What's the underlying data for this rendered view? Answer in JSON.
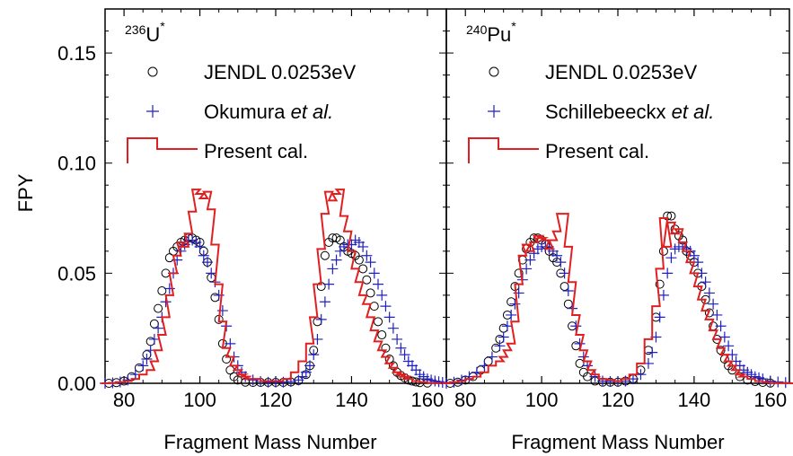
{
  "chart_data": [
    {
      "type": "scatter",
      "nucleus_mass": "236",
      "nucleus_symbol": "U",
      "nucleus_mark": "*",
      "xlabel": "Fragment Mass Number",
      "ylabel": "FPY",
      "xlim": [
        75,
        165
      ],
      "ylim": [
        0,
        0.17
      ],
      "xticks": [
        "80",
        "100",
        "120",
        "140",
        "160"
      ],
      "yticks": [
        "0.00",
        "0.05",
        "0.10",
        "0.15"
      ],
      "legend": {
        "placement": "top-left",
        "entries": [
          {
            "label": "JENDL 0.0253eV",
            "label_italic": ""
          },
          {
            "label": "Okumura ",
            "label_italic": "et al."
          },
          {
            "label": "Present cal.",
            "label_italic": ""
          }
        ]
      },
      "series": [
        {
          "name": "JENDL 0.0253eV",
          "marker": "circle",
          "color": "#000000",
          "x": [
            76,
            78,
            80,
            82,
            84,
            86,
            87,
            88,
            89,
            90,
            91,
            92,
            93,
            94,
            95,
            96,
            97,
            98,
            99,
            100,
            101,
            102,
            103,
            104,
            105,
            106,
            107,
            108,
            109,
            110,
            112,
            114,
            116,
            118,
            120,
            122,
            124,
            126,
            128,
            129,
            130,
            131,
            132,
            133,
            134,
            135,
            136,
            137,
            138,
            139,
            140,
            141,
            142,
            143,
            144,
            145,
            146,
            147,
            148,
            149,
            150,
            151,
            152,
            153,
            154,
            155,
            156,
            157,
            158,
            160
          ],
          "y": [
            0.0,
            0.0003,
            0.001,
            0.003,
            0.007,
            0.013,
            0.019,
            0.027,
            0.034,
            0.042,
            0.05,
            0.057,
            0.06,
            0.062,
            0.064,
            0.065,
            0.066,
            0.066,
            0.065,
            0.064,
            0.06,
            0.055,
            0.048,
            0.039,
            0.029,
            0.018,
            0.011,
            0.006,
            0.003,
            0.0015,
            0.0005,
            0.0004,
            0.0004,
            0.0004,
            0.0004,
            0.0004,
            0.0006,
            0.0012,
            0.004,
            0.008,
            0.015,
            0.028,
            0.044,
            0.058,
            0.064,
            0.066,
            0.066,
            0.065,
            0.062,
            0.06,
            0.059,
            0.058,
            0.056,
            0.052,
            0.047,
            0.041,
            0.035,
            0.028,
            0.022,
            0.016,
            0.011,
            0.008,
            0.005,
            0.0035,
            0.0025,
            0.0015,
            0.001,
            0.0006,
            0.0003,
            0.0001
          ]
        },
        {
          "name": "Okumura et al.",
          "marker": "plus",
          "color": "#2020c0",
          "x": [
            75,
            77,
            79,
            81,
            83,
            85,
            86,
            87,
            88,
            89,
            90,
            91,
            92,
            93,
            94,
            95,
            96,
            97,
            98,
            99,
            100,
            101,
            102,
            103,
            104,
            105,
            106,
            107,
            108,
            109,
            110,
            111,
            112,
            114,
            116,
            118,
            120,
            122,
            124,
            126,
            127,
            128,
            129,
            130,
            131,
            132,
            133,
            134,
            135,
            136,
            137,
            138,
            139,
            140,
            141,
            142,
            143,
            144,
            145,
            146,
            147,
            148,
            149,
            150,
            151,
            152,
            153,
            154,
            155,
            156,
            157,
            158,
            159,
            160,
            161,
            162,
            163,
            164
          ],
          "y": [
            0.0,
            0.0002,
            0.0006,
            0.0015,
            0.004,
            0.008,
            0.011,
            0.015,
            0.02,
            0.025,
            0.03,
            0.037,
            0.043,
            0.05,
            0.056,
            0.06,
            0.063,
            0.065,
            0.065,
            0.064,
            0.062,
            0.058,
            0.055,
            0.05,
            0.046,
            0.04,
            0.033,
            0.026,
            0.018,
            0.012,
            0.008,
            0.005,
            0.003,
            0.0015,
            0.0008,
            0.0005,
            0.0005,
            0.0005,
            0.0008,
            0.0015,
            0.003,
            0.005,
            0.008,
            0.013,
            0.02,
            0.029,
            0.037,
            0.045,
            0.052,
            0.056,
            0.06,
            0.062,
            0.063,
            0.063,
            0.065,
            0.064,
            0.062,
            0.058,
            0.055,
            0.05,
            0.045,
            0.04,
            0.035,
            0.03,
            0.025,
            0.02,
            0.016,
            0.013,
            0.01,
            0.008,
            0.006,
            0.004,
            0.003,
            0.002,
            0.0015,
            0.001,
            0.0007,
            0.0004
          ]
        },
        {
          "name": "Present cal.",
          "marker": "step",
          "color": "#e02020",
          "x": [
            75,
            77,
            79,
            81,
            83,
            85,
            87,
            88,
            89,
            90,
            91,
            92,
            93,
            94,
            95,
            96,
            97,
            98,
            99,
            100,
            101,
            102,
            103,
            104,
            105,
            106,
            107,
            108,
            109,
            110,
            111,
            112,
            113,
            115,
            117,
            119,
            121,
            123,
            125,
            127,
            129,
            130,
            131,
            132,
            133,
            134,
            135,
            136,
            137,
            138,
            139,
            140,
            141,
            142,
            143,
            144,
            145,
            146,
            147,
            148,
            149,
            150,
            151,
            152,
            153,
            154,
            155,
            157,
            159,
            161,
            163,
            165
          ],
          "y": [
            0.0,
            0.0002,
            0.0005,
            0.001,
            0.002,
            0.004,
            0.006,
            0.01,
            0.015,
            0.022,
            0.03,
            0.04,
            0.05,
            0.058,
            0.064,
            0.062,
            0.068,
            0.078,
            0.088,
            0.086,
            0.084,
            0.087,
            0.079,
            0.063,
            0.045,
            0.028,
            0.016,
            0.012,
            0.008,
            0.006,
            0.004,
            0.003,
            0.002,
            0.002,
            0.001,
            0.001,
            0.001,
            0.002,
            0.005,
            0.01,
            0.018,
            0.03,
            0.045,
            0.061,
            0.077,
            0.087,
            0.083,
            0.086,
            0.088,
            0.076,
            0.069,
            0.06,
            0.052,
            0.046,
            0.04,
            0.036,
            0.03,
            0.024,
            0.019,
            0.015,
            0.012,
            0.009,
            0.007,
            0.005,
            0.004,
            0.003,
            0.002,
            0.001,
            0.0005,
            0.0002,
            0.0001,
            0.0
          ]
        }
      ]
    },
    {
      "type": "scatter",
      "nucleus_mass": "240",
      "nucleus_symbol": "Pu",
      "nucleus_mark": "*",
      "xlabel": "Fragment Mass Number",
      "ylabel": "",
      "xlim": [
        75,
        165
      ],
      "ylim": [
        0,
        0.17
      ],
      "xticks": [
        "80",
        "100",
        "120",
        "140",
        "160"
      ],
      "yticks": [],
      "legend": {
        "placement": "top-left",
        "entries": [
          {
            "label": "JENDL 0.0253eV",
            "label_italic": ""
          },
          {
            "label": "Schillebeeckx ",
            "label_italic": "et al."
          },
          {
            "label": "Present cal.",
            "label_italic": ""
          }
        ]
      },
      "series": [
        {
          "name": "JENDL 0.0253eV",
          "marker": "circle",
          "color": "#000000",
          "x": [
            76,
            78,
            80,
            82,
            84,
            86,
            88,
            89,
            90,
            91,
            92,
            93,
            94,
            95,
            96,
            97,
            98,
            99,
            100,
            101,
            102,
            103,
            104,
            105,
            106,
            107,
            108,
            109,
            110,
            111,
            112,
            114,
            116,
            118,
            120,
            122,
            124,
            126,
            128,
            130,
            131,
            132,
            133,
            134,
            135,
            136,
            137,
            138,
            139,
            140,
            141,
            142,
            143,
            144,
            145,
            146,
            147,
            148,
            149,
            150,
            152,
            154,
            156,
            158,
            160
          ],
          "y": [
            0.0,
            0.0005,
            0.0015,
            0.003,
            0.006,
            0.01,
            0.016,
            0.02,
            0.025,
            0.031,
            0.037,
            0.044,
            0.05,
            0.056,
            0.061,
            0.064,
            0.066,
            0.066,
            0.065,
            0.063,
            0.06,
            0.057,
            0.055,
            0.05,
            0.044,
            0.036,
            0.026,
            0.017,
            0.009,
            0.005,
            0.003,
            0.001,
            0.0005,
            0.0005,
            0.0005,
            0.001,
            0.002,
            0.006,
            0.015,
            0.03,
            0.045,
            0.06,
            0.076,
            0.076,
            0.07,
            0.067,
            0.065,
            0.06,
            0.058,
            0.055,
            0.05,
            0.044,
            0.038,
            0.032,
            0.026,
            0.02,
            0.015,
            0.011,
            0.008,
            0.006,
            0.003,
            0.0015,
            0.0008,
            0.0004,
            0.0001
          ]
        },
        {
          "name": "Schillebeeckx et al.",
          "marker": "plus",
          "color": "#2020c0",
          "x": [
            75,
            77,
            79,
            81,
            83,
            85,
            87,
            89,
            90,
            91,
            92,
            93,
            94,
            95,
            96,
            97,
            98,
            99,
            100,
            101,
            102,
            103,
            104,
            105,
            106,
            107,
            108,
            109,
            110,
            111,
            112,
            114,
            116,
            118,
            120,
            122,
            124,
            126,
            128,
            129,
            130,
            131,
            132,
            133,
            134,
            135,
            136,
            137,
            138,
            139,
            140,
            141,
            142,
            143,
            144,
            145,
            146,
            147,
            148,
            149,
            150,
            151,
            152,
            153,
            154,
            155,
            156,
            157,
            158,
            160,
            162,
            164
          ],
          "y": [
            0.0,
            0.0005,
            0.0015,
            0.003,
            0.005,
            0.008,
            0.012,
            0.017,
            0.021,
            0.026,
            0.031,
            0.036,
            0.041,
            0.047,
            0.052,
            0.056,
            0.059,
            0.061,
            0.062,
            0.062,
            0.061,
            0.06,
            0.058,
            0.055,
            0.05,
            0.042,
            0.034,
            0.026,
            0.018,
            0.012,
            0.008,
            0.003,
            0.001,
            0.0008,
            0.0008,
            0.001,
            0.002,
            0.004,
            0.009,
            0.014,
            0.021,
            0.03,
            0.04,
            0.05,
            0.057,
            0.061,
            0.062,
            0.062,
            0.061,
            0.06,
            0.058,
            0.055,
            0.05,
            0.046,
            0.041,
            0.036,
            0.031,
            0.026,
            0.021,
            0.017,
            0.013,
            0.01,
            0.008,
            0.006,
            0.005,
            0.004,
            0.003,
            0.0025,
            0.002,
            0.001,
            0.0006,
            0.0003
          ]
        },
        {
          "name": "Present cal.",
          "marker": "step",
          "color": "#e02020",
          "x": [
            75,
            77,
            79,
            81,
            83,
            85,
            87,
            89,
            90,
            91,
            92,
            93,
            94,
            95,
            96,
            97,
            98,
            99,
            100,
            101,
            102,
            103,
            104,
            105,
            106,
            107,
            108,
            109,
            110,
            111,
            112,
            113,
            114,
            116,
            118,
            120,
            122,
            124,
            126,
            128,
            130,
            131,
            132,
            133,
            134,
            135,
            136,
            137,
            138,
            139,
            140,
            141,
            142,
            143,
            144,
            145,
            146,
            147,
            148,
            149,
            150,
            151,
            152,
            153,
            155,
            157,
            159,
            161,
            163,
            165
          ],
          "y": [
            0.0,
            0.0005,
            0.001,
            0.002,
            0.003,
            0.005,
            0.008,
            0.01,
            0.012,
            0.015,
            0.018,
            0.028,
            0.045,
            0.058,
            0.063,
            0.06,
            0.064,
            0.067,
            0.066,
            0.065,
            0.061,
            0.065,
            0.069,
            0.077,
            0.077,
            0.062,
            0.046,
            0.031,
            0.022,
            0.015,
            0.01,
            0.006,
            0.004,
            0.002,
            0.0015,
            0.001,
            0.002,
            0.004,
            0.009,
            0.02,
            0.035,
            0.052,
            0.075,
            0.062,
            0.073,
            0.068,
            0.07,
            0.064,
            0.06,
            0.055,
            0.05,
            0.044,
            0.038,
            0.033,
            0.029,
            0.024,
            0.02,
            0.016,
            0.013,
            0.01,
            0.008,
            0.006,
            0.004,
            0.003,
            0.002,
            0.001,
            0.0005,
            0.0002,
            0.0001,
            0.0
          ]
        }
      ]
    }
  ]
}
